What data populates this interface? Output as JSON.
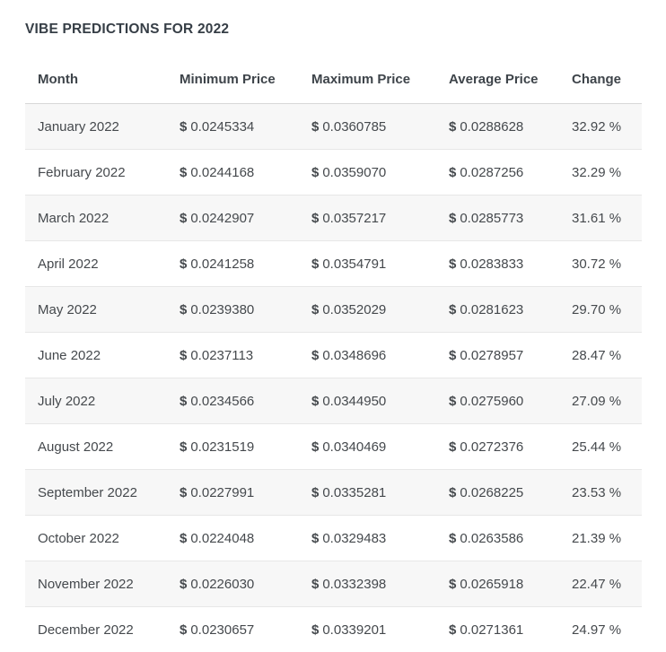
{
  "title": "VIBE PREDICTIONS FOR 2022",
  "colors": {
    "title_text": "#363e46",
    "body_text": "#45494d",
    "stripe_row_bg": "#f7f7f7",
    "row_divider": "#e7e7e7",
    "header_divider": "#d8d8d8",
    "page_bg": "#ffffff"
  },
  "table": {
    "currency": "$",
    "columns": [
      "Month",
      "Minimum Price",
      "Maximum Price",
      "Average Price",
      "Change"
    ],
    "rows": [
      {
        "month": "January 2022",
        "min": "0.0245334",
        "max": "0.0360785",
        "avg": "0.0288628",
        "change": "32.92 %"
      },
      {
        "month": "February 2022",
        "min": "0.0244168",
        "max": "0.0359070",
        "avg": "0.0287256",
        "change": "32.29 %"
      },
      {
        "month": "March 2022",
        "min": "0.0242907",
        "max": "0.0357217",
        "avg": "0.0285773",
        "change": "31.61 %"
      },
      {
        "month": "April 2022",
        "min": "0.0241258",
        "max": "0.0354791",
        "avg": "0.0283833",
        "change": "30.72 %"
      },
      {
        "month": "May 2022",
        "min": "0.0239380",
        "max": "0.0352029",
        "avg": "0.0281623",
        "change": "29.70 %"
      },
      {
        "month": "June 2022",
        "min": "0.0237113",
        "max": "0.0348696",
        "avg": "0.0278957",
        "change": "28.47 %"
      },
      {
        "month": "July 2022",
        "min": "0.0234566",
        "max": "0.0344950",
        "avg": "0.0275960",
        "change": "27.09 %"
      },
      {
        "month": "August 2022",
        "min": "0.0231519",
        "max": "0.0340469",
        "avg": "0.0272376",
        "change": "25.44 %"
      },
      {
        "month": "September 2022",
        "min": "0.0227991",
        "max": "0.0335281",
        "avg": "0.0268225",
        "change": "23.53 %"
      },
      {
        "month": "October 2022",
        "min": "0.0224048",
        "max": "0.0329483",
        "avg": "0.0263586",
        "change": "21.39 %"
      },
      {
        "month": "November 2022",
        "min": "0.0226030",
        "max": "0.0332398",
        "avg": "0.0265918",
        "change": "22.47 %"
      },
      {
        "month": "December 2022",
        "min": "0.0230657",
        "max": "0.0339201",
        "avg": "0.0271361",
        "change": "24.97 %"
      }
    ]
  }
}
